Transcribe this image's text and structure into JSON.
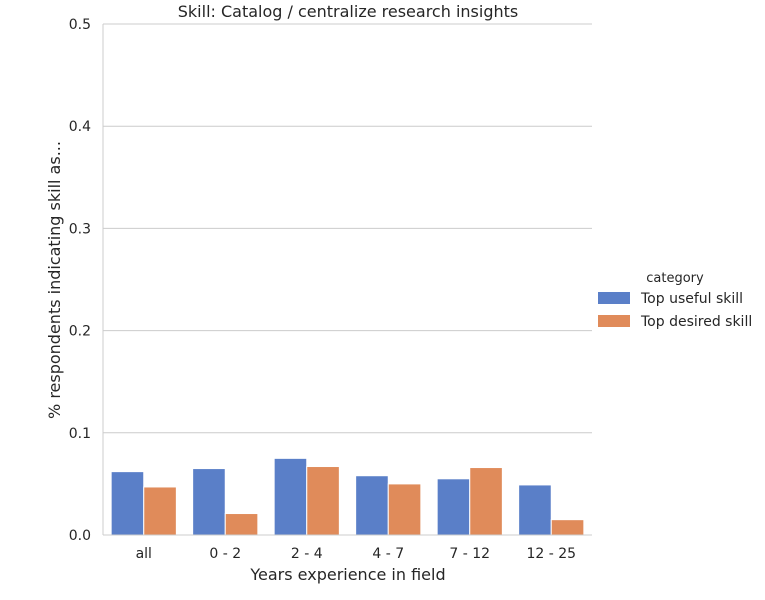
{
  "chart_data": {
    "type": "bar",
    "title": "Skill: Catalog / centralize research insights",
    "xlabel": "Years experience in field",
    "ylabel": "% respondents indicating skill as...",
    "categories": [
      "all",
      "0 - 2",
      "2 - 4",
      "4 - 7",
      "7 - 12",
      "12 - 25"
    ],
    "series": [
      {
        "name": "Top useful skill",
        "color": "#5a7fc8",
        "values": [
          0.062,
          0.065,
          0.075,
          0.058,
          0.055,
          0.049
        ]
      },
      {
        "name": "Top desired skill",
        "color": "#e08b5a",
        "values": [
          0.047,
          0.021,
          0.067,
          0.05,
          0.066,
          0.015
        ]
      }
    ],
    "ylim": [
      0,
      0.5
    ],
    "yticks": [
      "0.0",
      "0.1",
      "0.2",
      "0.3",
      "0.4",
      "0.5"
    ],
    "grid": true,
    "legend": {
      "title": "category",
      "placement": "right"
    }
  }
}
